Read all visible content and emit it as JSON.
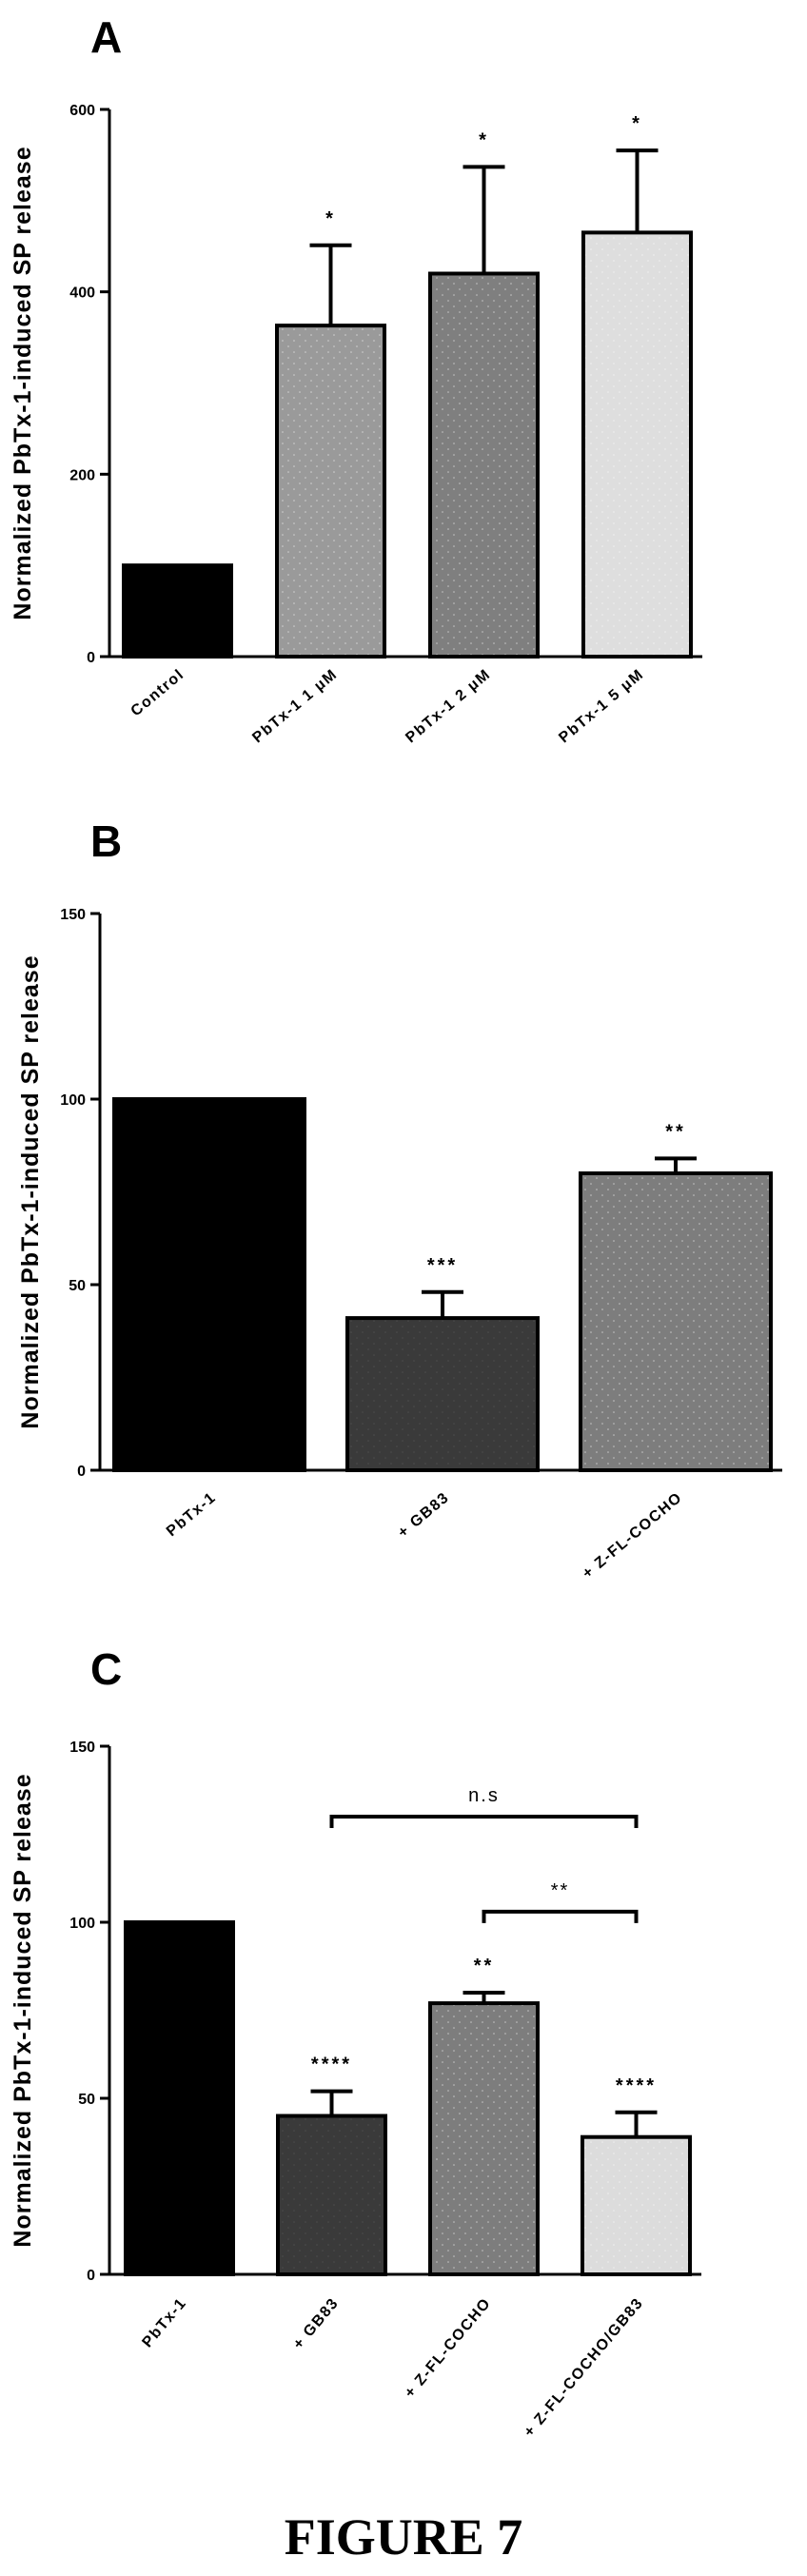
{
  "figure_caption": "FIGURE 7",
  "chart_data": [
    {
      "type": "bar",
      "panel_label": "A",
      "title": "",
      "xlabel": "",
      "ylabel": "Normalized PbTx-1-induced SP release",
      "ylim": [
        0,
        600
      ],
      "yticks": [
        "0",
        "200",
        "400",
        "600"
      ],
      "categories": [
        "Control",
        "PbTx-1 1 μM",
        "PbTx-1 2 μM",
        "PbTx-1 5 μM"
      ],
      "values": [
        100,
        363,
        420,
        465
      ],
      "errors": [
        0,
        88,
        117,
        90
      ],
      "significance": [
        "",
        "*",
        "*",
        "*"
      ],
      "fills": [
        "#000000",
        "#9a9a9a",
        "#7f7f7f",
        "#dedede"
      ],
      "brackets": []
    },
    {
      "type": "bar",
      "panel_label": "B",
      "title": "",
      "xlabel": "",
      "ylabel": "Normalized PbTx-1-induced SP release",
      "ylim": [
        0,
        150
      ],
      "yticks": [
        "0",
        "50",
        "100",
        "150"
      ],
      "categories": [
        "PbTx-1",
        "+ GB83",
        "+ Z-FL-COCHO"
      ],
      "values": [
        100,
        41,
        80
      ],
      "errors": [
        0,
        7,
        4
      ],
      "significance": [
        "",
        "***",
        "**"
      ],
      "fills": [
        "#000000",
        "#3a3a3a",
        "#7d7d7d"
      ],
      "brackets": []
    },
    {
      "type": "bar",
      "panel_label": "C",
      "title": "",
      "xlabel": "",
      "ylabel": "Normalized PbTx-1-induced SP release",
      "ylim": [
        0,
        150
      ],
      "yticks": [
        "0",
        "50",
        "100",
        "150"
      ],
      "categories": [
        "PbTx-1",
        "+ GB83",
        "+ Z-FL-COCHO",
        "+ Z-FL-COCHO/GB83"
      ],
      "values": [
        100,
        45,
        77,
        39
      ],
      "errors": [
        0,
        7,
        3,
        7
      ],
      "significance": [
        "",
        "****",
        "**",
        "****"
      ],
      "fills": [
        "#000000",
        "#3a3a3a",
        "#7d7d7d",
        "#dcdcdc"
      ],
      "brackets": [
        {
          "from": 1,
          "to": 3,
          "y": 130,
          "label": "n.s"
        },
        {
          "from": 2,
          "to": 3,
          "y": 103,
          "label": "**"
        }
      ]
    }
  ]
}
